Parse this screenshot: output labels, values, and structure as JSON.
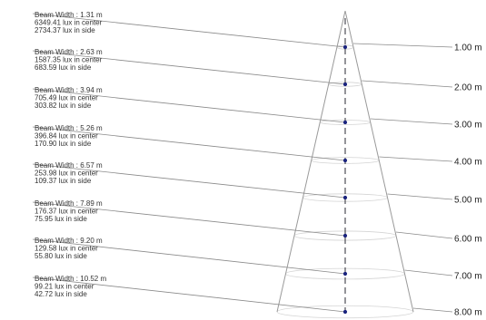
{
  "colors": {
    "cone": "#9a9a9a",
    "leader": "#8a8a8a",
    "ring": "#d4d4d4",
    "axis": "#2a2a33",
    "marker": "#1a237e",
    "text": "#333333"
  },
  "levels": [
    {
      "width": "Beam Width : 1.31 m",
      "center": "6349.41 lux in center",
      "side": "2734.37 lux in side",
      "distance": "1.00 m"
    },
    {
      "width": "Beam Width : 2.63 m",
      "center": "1587.35 lux in center",
      "side": "683.59 lux in side",
      "distance": "2.00 m"
    },
    {
      "width": "Beam Width : 3.94 m",
      "center": "705.49 lux in center",
      "side": "303.82 lux in side",
      "distance": "3.00 m"
    },
    {
      "width": "Beam Width : 5.26 m",
      "center": "396.84 lux in center",
      "side": "170.90 lux in side",
      "distance": "4.00 m"
    },
    {
      "width": "Beam Width : 6.57 m",
      "center": "253.98 lux in center",
      "side": "109.37 lux in side",
      "distance": "5.00 m"
    },
    {
      "width": "Beam Width : 7.89 m",
      "center": "176.37 lux in center",
      "side": "75.95 lux in side",
      "distance": "6.00 m"
    },
    {
      "width": "Beam Width : 9.20 m",
      "center": "129.58 lux in center",
      "side": "55.80 lux in side",
      "distance": "7.00 m"
    },
    {
      "width": "Beam Width : 10.52 m",
      "center": "99.21 lux in center",
      "side": "42.72 lux in side",
      "distance": "8.00 m"
    }
  ]
}
